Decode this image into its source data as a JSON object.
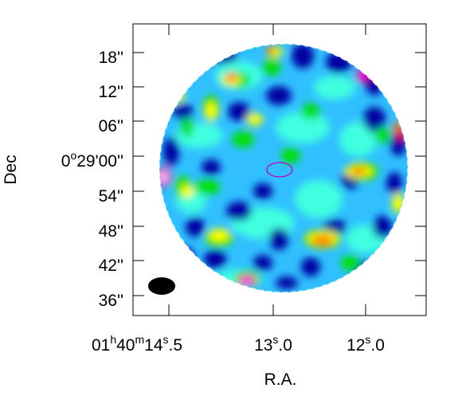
{
  "figure": {
    "xlabel": "R.A.",
    "ylabel": "Dec",
    "x_ticks": [
      {
        "main": "01",
        "h": "h",
        "m_val": "40",
        "m": "m",
        "s_val": "14",
        "s": "s",
        "frac": ".5"
      },
      {
        "main": "13",
        "s": "s",
        "frac": ".0"
      },
      {
        "main": "12",
        "s": "s",
        "frac": ".0"
      }
    ],
    "y_ticks": [
      {
        "label": "18''"
      },
      {
        "label": "12''"
      },
      {
        "label": "06''"
      },
      {
        "label": "0",
        "sup": "o",
        "rest": "29'00''"
      },
      {
        "label": "54''"
      },
      {
        "label": "48''"
      },
      {
        "label": "42''"
      },
      {
        "label": "36''"
      }
    ],
    "colormap": [
      "#0000a0",
      "#1060ff",
      "#30c0ff",
      "#40ffe0",
      "#00e000",
      "#ffff00",
      "#ff8000",
      "#ff0000",
      "#ff00ff",
      "#ffffff"
    ],
    "center_marker_color": "#c000c0",
    "beam_color": "#000000",
    "frame_color": "#000000"
  }
}
